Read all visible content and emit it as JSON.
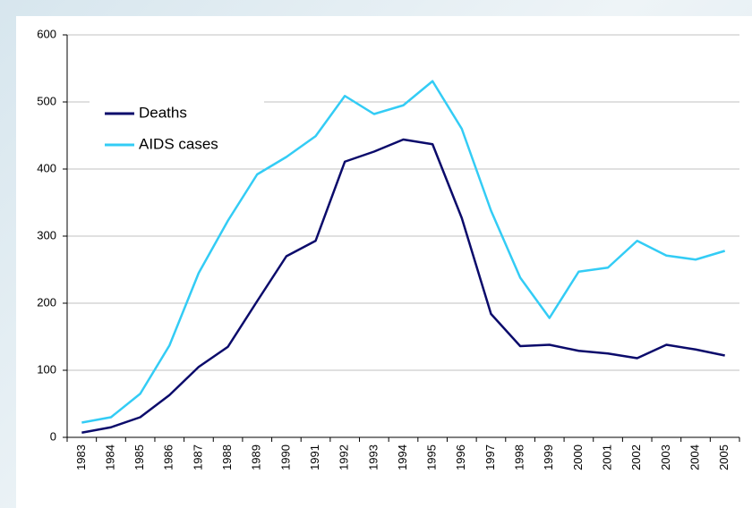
{
  "chart_data": {
    "type": "line",
    "categories": [
      "1983",
      "1984",
      "1985",
      "1986",
      "1987",
      "1988",
      "1989",
      "1990",
      "1991",
      "1992",
      "1993",
      "1994",
      "1995",
      "1996",
      "1997",
      "1998",
      "1999",
      "2000",
      "2001",
      "2002",
      "2003",
      "2004",
      "2005"
    ],
    "series": [
      {
        "name": "Deaths",
        "color": "#0b0b6b",
        "values": [
          7,
          15,
          30,
          63,
          105,
          135,
          203,
          270,
          293,
          411,
          426,
          444,
          437,
          327,
          184,
          136,
          138,
          129,
          125,
          118,
          138,
          131,
          122
        ]
      },
      {
        "name": "AIDS cases",
        "color": "#33ccf5",
        "values": [
          22,
          30,
          65,
          137,
          245,
          323,
          392,
          418,
          449,
          509,
          482,
          495,
          531,
          460,
          338,
          238,
          178,
          247,
          253,
          293,
          271,
          265,
          278
        ]
      }
    ],
    "ylim": [
      0,
      600
    ],
    "yticks": [
      0,
      100,
      200,
      300,
      400,
      500,
      600
    ],
    "grid": true,
    "legend": "upper left"
  }
}
